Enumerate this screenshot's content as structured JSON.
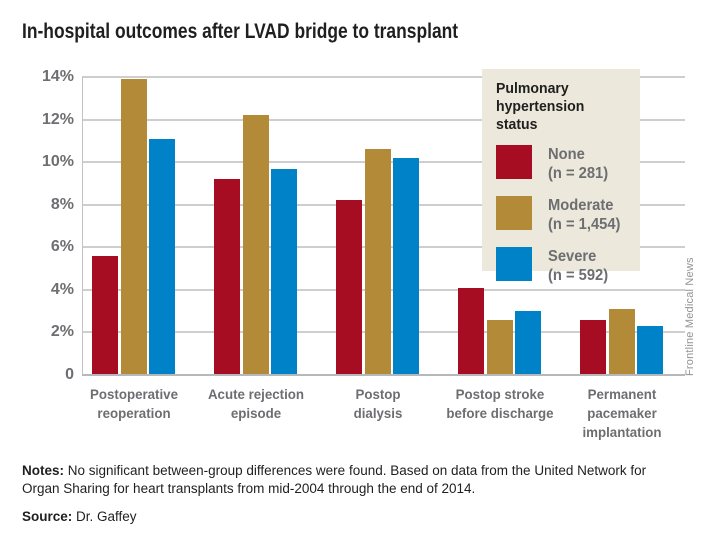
{
  "title": "In-hospital outcomes after LVAD bridge to transplant",
  "credit": "Frontline Medical News",
  "notes": {
    "label": "Notes:",
    "text": "No significant between-group differences were found. Based on data from the United Network for Organ Sharing for heart transplants from mid-2004 through the end of 2014."
  },
  "source": {
    "label": "Source:",
    "text": "Dr. Gaffey"
  },
  "legend": {
    "title": "Pulmonary hypertension status",
    "background": "#ece8db",
    "items": [
      {
        "label": "None",
        "count": "(n = 281)",
        "color": "#a60d22"
      },
      {
        "label": "Moderate",
        "count": "(n = 1,454)",
        "color": "#b28a38"
      },
      {
        "label": "Severe",
        "count": "(n = 592)",
        "color": "#0082c8"
      }
    ]
  },
  "chart_data": {
    "type": "bar",
    "title": "In-hospital outcomes after LVAD bridge to transplant",
    "categories": [
      "Postoperative reoperation",
      "Acute rejection episode",
      "Postop dialysis",
      "Postop stroke before discharge",
      "Permanent pacemaker implantation"
    ],
    "category_label_lines": [
      [
        "Postoperative",
        "reoperation"
      ],
      [
        "Acute rejection",
        "episode"
      ],
      [
        "Postop",
        "dialysis"
      ],
      [
        "Postop stroke",
        "before discharge"
      ],
      [
        "Permanent",
        "pacemaker",
        "implantation"
      ]
    ],
    "series": [
      {
        "name": "None (n = 281)",
        "color": "#a60d22",
        "values": [
          5.6,
          9.2,
          8.2,
          4.1,
          2.6
        ]
      },
      {
        "name": "Moderate (n = 1,454)",
        "color": "#b28a38",
        "values": [
          13.9,
          12.2,
          10.6,
          2.6,
          3.1
        ]
      },
      {
        "name": "Severe (n = 592)",
        "color": "#0082c8",
        "values": [
          11.1,
          9.7,
          10.2,
          3.0,
          2.3
        ]
      }
    ],
    "unit": "%",
    "ylim": [
      0,
      14
    ],
    "ytick_step": 2,
    "ytick_labels": [
      "0",
      "2%",
      "4%",
      "6%",
      "8%",
      "10%",
      "12%",
      "14%"
    ],
    "grid": true,
    "legend_title": "Pulmonary hypertension status",
    "legend_position": "top-right"
  },
  "colors": {
    "grid": "#cdced0",
    "axis": "#b7b8ba",
    "axis_text": "#6d6e71",
    "title_text": "#1f1f1f",
    "credit_text": "#919396",
    "legend_bg": "#ece8db"
  }
}
